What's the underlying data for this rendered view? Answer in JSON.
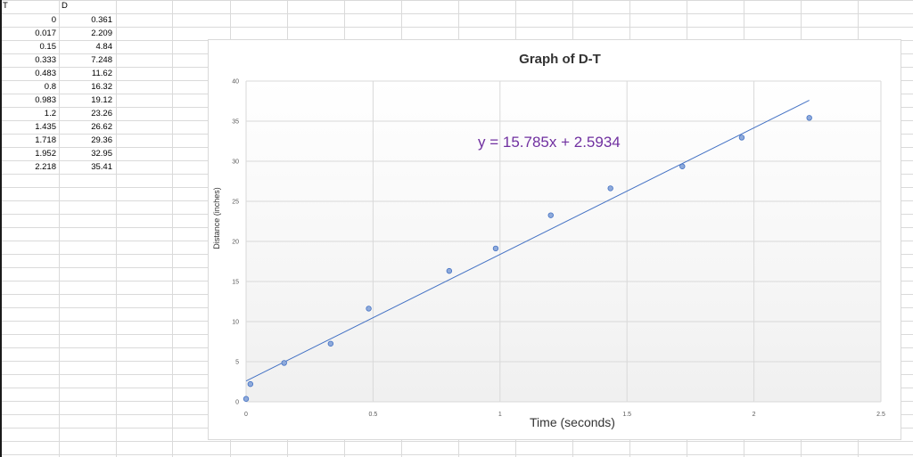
{
  "sheet": {
    "headers": {
      "col_a": "T",
      "col_b": "D"
    },
    "rows": [
      {
        "t": "0",
        "d": "0.361"
      },
      {
        "t": "0.017",
        "d": "2.209"
      },
      {
        "t": "0.15",
        "d": "4.84"
      },
      {
        "t": "0.333",
        "d": "7.248"
      },
      {
        "t": "0.483",
        "d": "11.62"
      },
      {
        "t": "0.8",
        "d": "16.32"
      },
      {
        "t": "0.983",
        "d": "19.12"
      },
      {
        "t": "1.2",
        "d": "23.26"
      },
      {
        "t": "1.435",
        "d": "26.62"
      },
      {
        "t": "1.718",
        "d": "29.36"
      },
      {
        "t": "1.952",
        "d": "32.95"
      },
      {
        "t": "2.218",
        "d": "35.41"
      }
    ]
  },
  "chart_data": {
    "type": "scatter",
    "title": "Graph of D-T",
    "xlabel": "Time (seconds)",
    "ylabel": "Distance (inches)",
    "xlim": [
      0,
      2.5
    ],
    "ylim": [
      0,
      40
    ],
    "xticks": [
      0,
      0.5,
      1,
      1.5,
      2,
      2.5
    ],
    "xtick_labels": [
      "0",
      "0.5",
      "1",
      "1.5",
      "2",
      "2.5"
    ],
    "yticks": [
      0,
      5,
      10,
      15,
      20,
      25,
      30,
      35,
      40
    ],
    "ytick_labels": [
      "0",
      "5",
      "10",
      "15",
      "20",
      "25",
      "30",
      "35",
      "40"
    ],
    "grid": true,
    "series": [
      {
        "x": [
          0,
          0.017,
          0.15,
          0.333,
          0.483,
          0.8,
          0.983,
          1.2,
          1.435,
          1.718,
          1.952,
          2.218
        ],
        "y": [
          0.361,
          2.209,
          4.84,
          7.248,
          11.62,
          16.32,
          19.12,
          23.26,
          26.62,
          29.36,
          32.95,
          35.41
        ],
        "color": "#8eaadb",
        "edge_color": "#4472c4"
      }
    ],
    "trendline": {
      "slope": 15.785,
      "intercept": 2.5934,
      "equation": "y = 15.785x + 2.5934",
      "color": "#4472c4",
      "label_color": "#7030a0"
    }
  }
}
